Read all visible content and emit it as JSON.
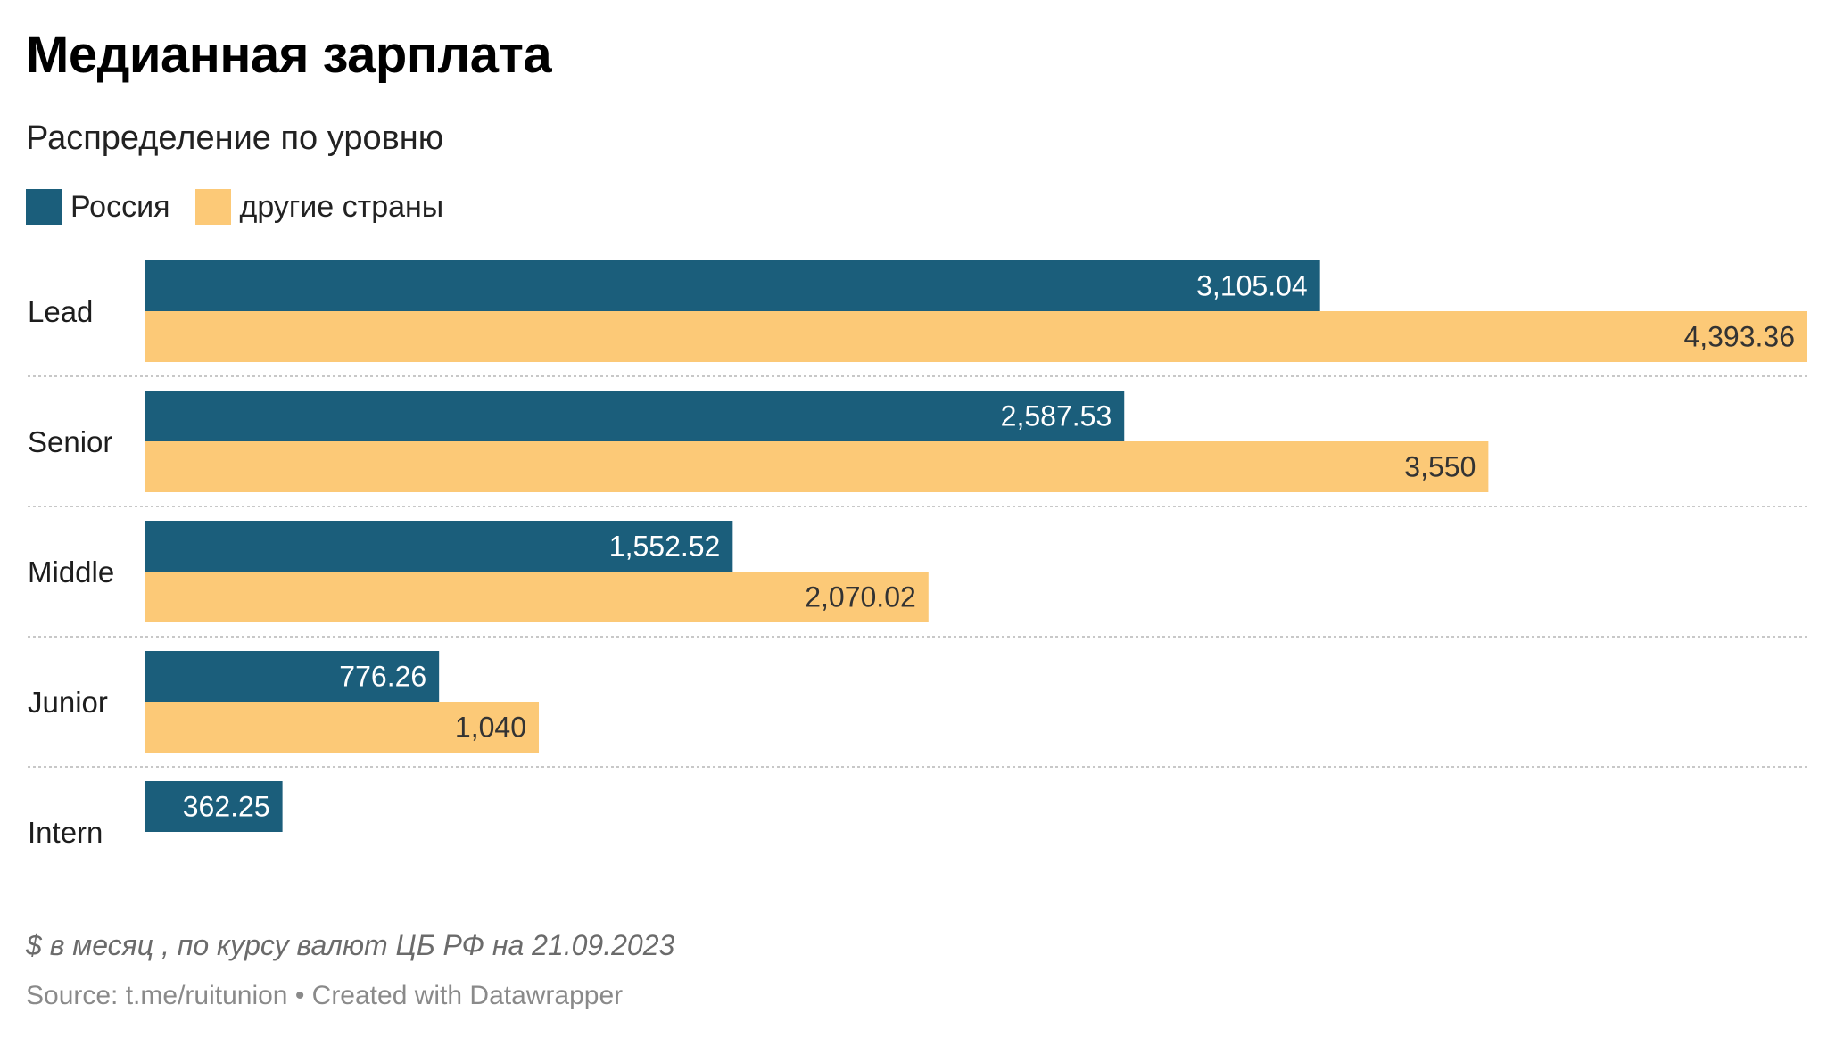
{
  "chart_data": {
    "type": "bar",
    "orientation": "horizontal",
    "title": "Медианная зарплата",
    "subtitle": "Распределение по уровню",
    "categories": [
      "Lead",
      "Senior",
      "Middle",
      "Junior",
      "Intern"
    ],
    "series": [
      {
        "name": "Россия",
        "color": "#1b5e7b",
        "label_color": "#ffffff",
        "values": [
          3105.04,
          2587.53,
          1552.52,
          776.26,
          362.25
        ],
        "labels": [
          "3,105.04",
          "2,587.53",
          "1,552.52",
          "776.26",
          "362.25"
        ]
      },
      {
        "name": "другие страны",
        "color": "#fcc977",
        "label_color": "#333333",
        "values": [
          4393.36,
          3550,
          2070.02,
          1040,
          null
        ],
        "labels": [
          "4,393.36",
          "3,550",
          "2,070.02",
          "1,040",
          ""
        ]
      }
    ],
    "xlim": [
      0,
      4393.36
    ],
    "grid": false,
    "legend_position": "top-left",
    "notes": "$ в месяц , по курсу валют ЦБ РФ на 21.09.2023",
    "source": "Source: t.me/ruitunion • Created with Datawrapper"
  }
}
